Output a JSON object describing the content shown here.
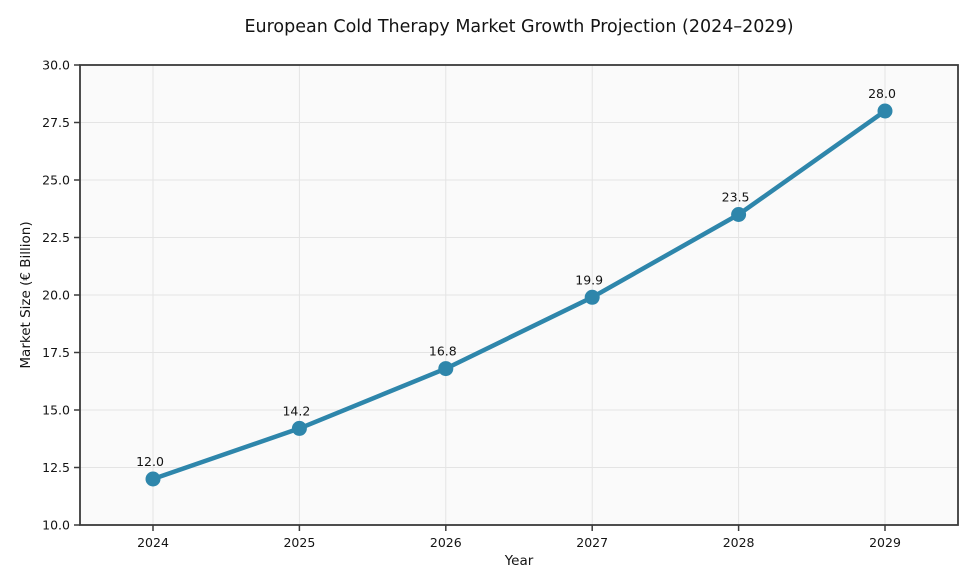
{
  "chart_data": {
    "type": "line",
    "title": "European Cold Therapy Market Growth Projection (2024–2029)",
    "xlabel": "Year",
    "ylabel": "Market Size (€ Billion)",
    "categories": [
      "2024",
      "2025",
      "2026",
      "2027",
      "2028",
      "2029"
    ],
    "values": [
      12.0,
      14.2,
      16.8,
      19.9,
      23.5,
      28.0
    ],
    "point_labels": [
      "12.0",
      "14.2",
      "16.8",
      "19.9",
      "23.5",
      "28.0"
    ],
    "ylim": [
      10.0,
      30.0
    ],
    "ytick_step": 2.5,
    "ytick_labels": [
      "10.0",
      "12.5",
      "15.0",
      "17.5",
      "20.0",
      "22.5",
      "25.0",
      "27.5",
      "30.0"
    ],
    "grid": true,
    "legend": "none",
    "colors": {
      "line": "#2E86AB",
      "marker": "#2E86AB",
      "grid": "#e4e4e4",
      "plot_background": "#fafafa",
      "figure_background": "#ffffff",
      "spine": "#3b3b3b",
      "text": "#141414"
    }
  }
}
